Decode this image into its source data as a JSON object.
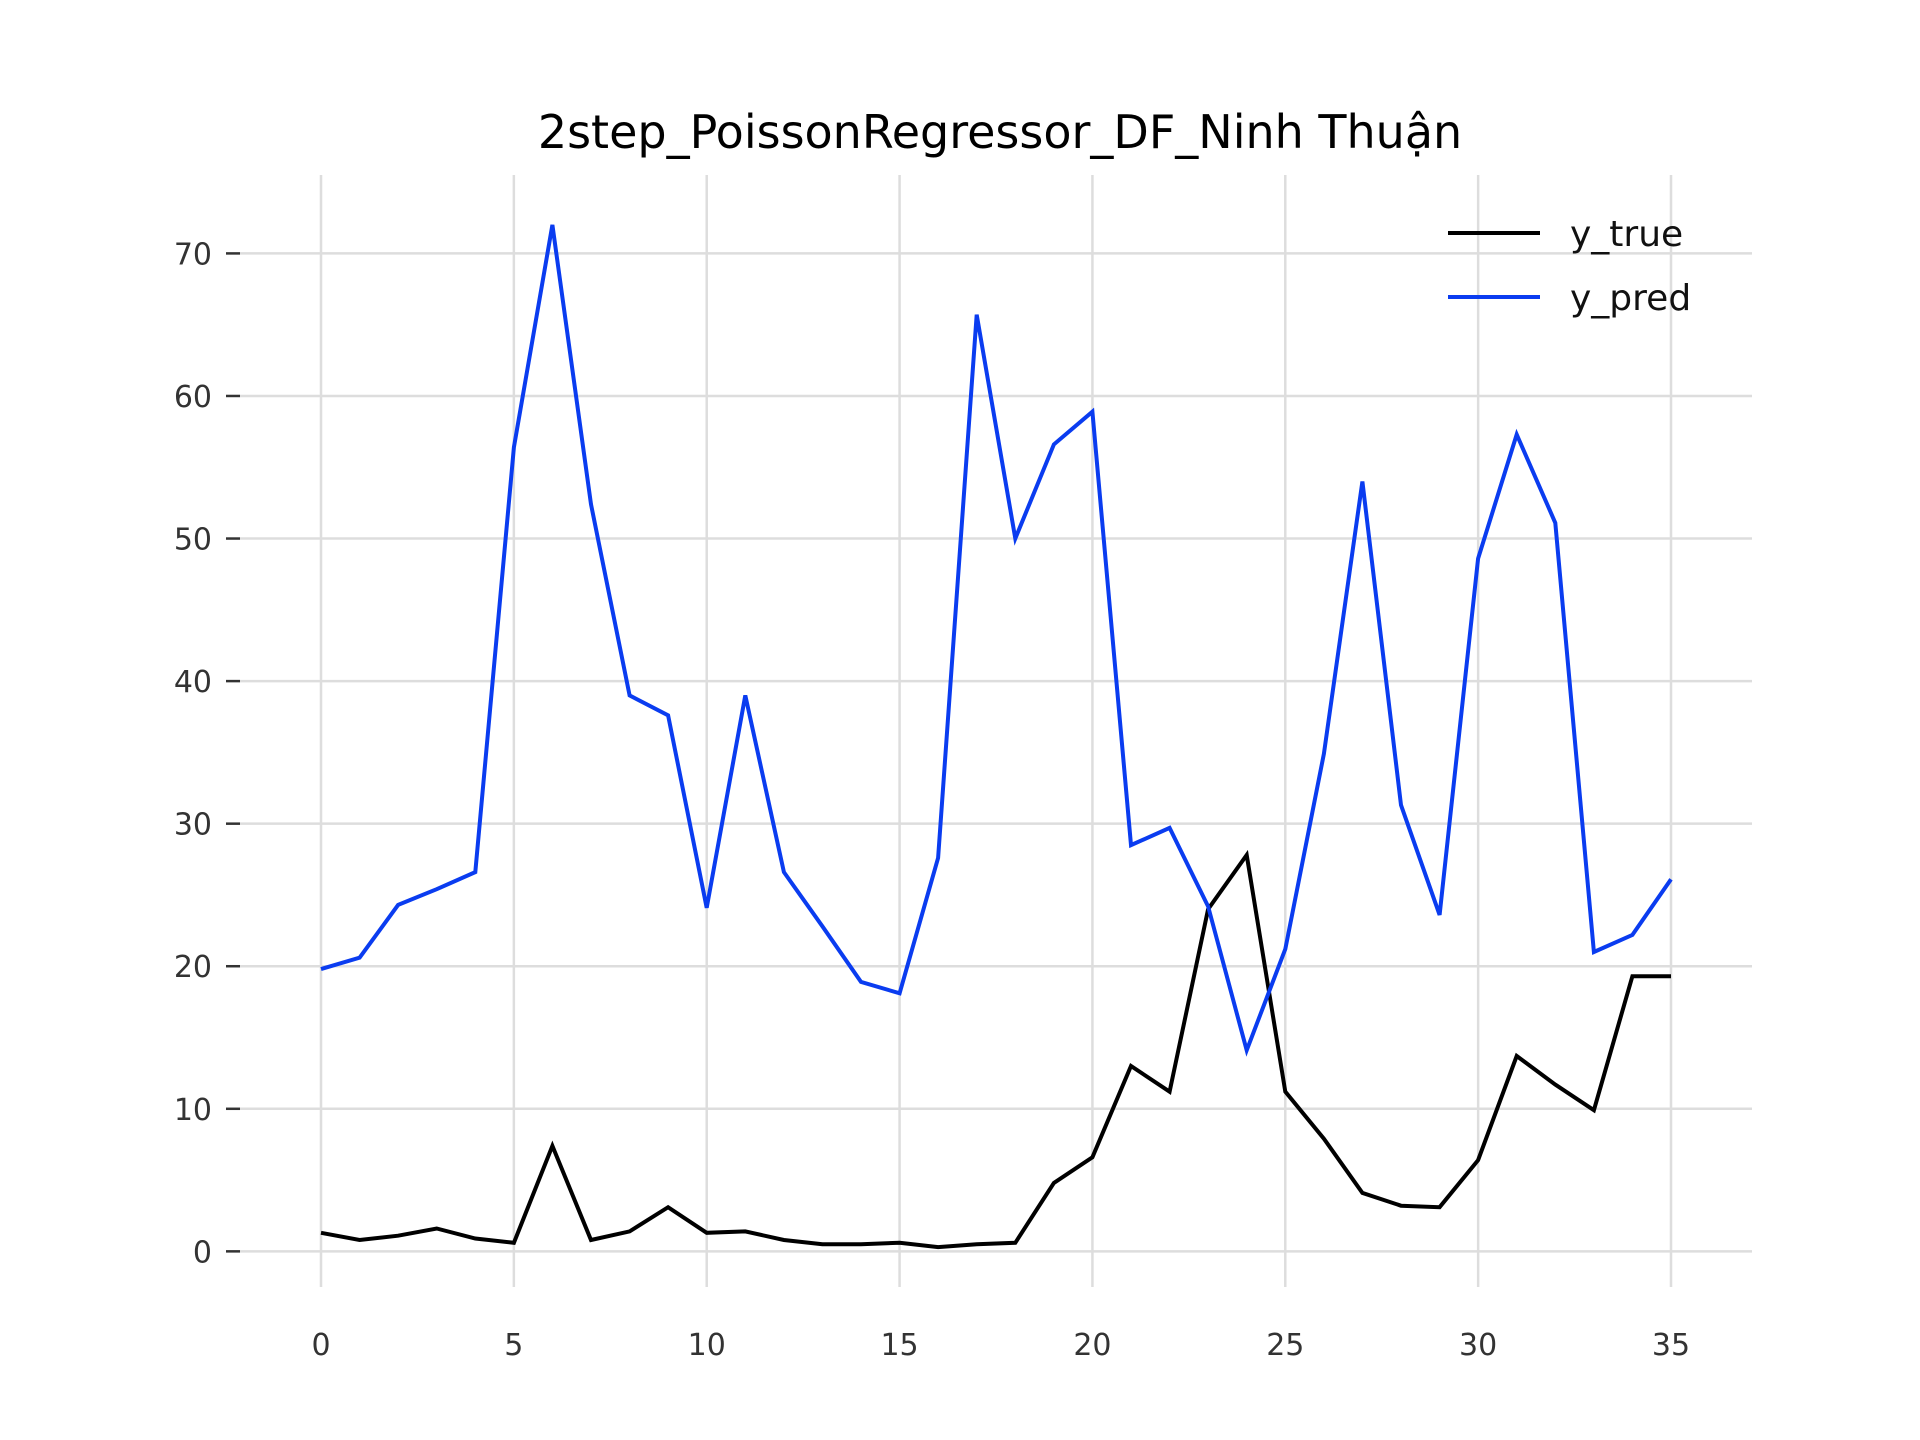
{
  "chart_data": {
    "type": "line",
    "title": "2step_PoissonRegressor_DF_Ninh Thuận",
    "xlabel": "",
    "ylabel": "",
    "xlim": [
      -2.1,
      37.1
    ],
    "ylim": [
      -2.5,
      75.5
    ],
    "xticks": [
      0,
      5,
      10,
      15,
      20,
      25,
      30,
      35
    ],
    "yticks": [
      0,
      10,
      20,
      30,
      40,
      50,
      60,
      70
    ],
    "grid": true,
    "legend": "top-right",
    "x": [
      0,
      1,
      2,
      3,
      4,
      5,
      6,
      7,
      8,
      9,
      10,
      11,
      12,
      13,
      14,
      15,
      16,
      17,
      18,
      19,
      20,
      21,
      22,
      23,
      24,
      25,
      26,
      27,
      28,
      29,
      30,
      31,
      32,
      33,
      34,
      35
    ],
    "series": [
      {
        "name": "y_true",
        "color": "#000000",
        "values": [
          1.3,
          0.8,
          1.1,
          1.6,
          0.9,
          0.6,
          7.4,
          0.8,
          1.4,
          3.1,
          1.3,
          1.4,
          0.8,
          0.5,
          0.5,
          0.6,
          0.3,
          0.5,
          0.6,
          4.8,
          6.6,
          13.0,
          11.2,
          24.0,
          27.8,
          11.2,
          7.9,
          4.1,
          3.2,
          3.1,
          6.4,
          13.7,
          11.7,
          9.9,
          19.3,
          19.3
        ]
      },
      {
        "name": "y_pred",
        "color": "#0a3cf0",
        "values": [
          19.8,
          20.6,
          24.3,
          25.4,
          26.6,
          56.4,
          72.0,
          52.4,
          39.0,
          37.6,
          24.1,
          39.0,
          26.6,
          22.8,
          18.9,
          18.1,
          27.6,
          65.7,
          50.0,
          56.6,
          58.9,
          28.5,
          29.7,
          24.2,
          14.1,
          21.2,
          34.9,
          54.0,
          31.3,
          23.6,
          48.6,
          57.3,
          51.1,
          21.0,
          22.2,
          26.1
        ]
      }
    ]
  }
}
